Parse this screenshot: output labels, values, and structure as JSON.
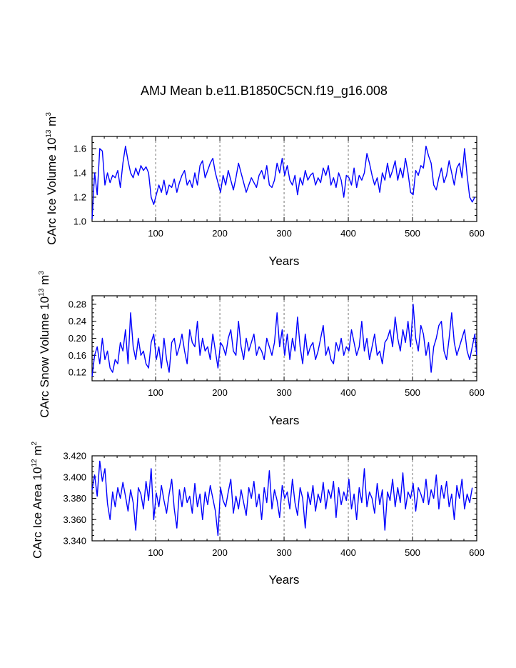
{
  "figure_title": "AMJ Mean b.e11.B1850C5CN.f19_g16.008",
  "chart_data": [
    {
      "type": "line",
      "ylabel_main": "CArc Ice Volume 10",
      "ylabel_exp": "13",
      "ylabel_unit": " m",
      "ylabel_unit_exp": "3",
      "xlabel": "Years",
      "xlim": [
        1,
        600
      ],
      "ylim": [
        1.0,
        1.7
      ],
      "xticks": [
        100,
        200,
        300,
        400,
        500,
        600
      ],
      "xtick_labels": [
        "100",
        "200",
        "300",
        "400",
        "500",
        "600"
      ],
      "yticks": [
        1.0,
        1.2,
        1.4,
        1.6
      ],
      "ytick_labels": [
        "1.0",
        "1.2",
        "1.4",
        "1.6"
      ],
      "grid_x": [
        100,
        200,
        300,
        400,
        500
      ],
      "series": [
        {
          "name": "CArc Ice Volume",
          "color": "#0000ff",
          "x_start": 1,
          "x_step": 4,
          "values": [
            1.02,
            1.4,
            1.22,
            1.6,
            1.58,
            1.3,
            1.4,
            1.32,
            1.38,
            1.36,
            1.42,
            1.28,
            1.48,
            1.62,
            1.5,
            1.4,
            1.36,
            1.44,
            1.38,
            1.46,
            1.42,
            1.45,
            1.4,
            1.2,
            1.14,
            1.22,
            1.3,
            1.24,
            1.34,
            1.22,
            1.3,
            1.28,
            1.35,
            1.24,
            1.32,
            1.38,
            1.42,
            1.3,
            1.34,
            1.28,
            1.4,
            1.3,
            1.46,
            1.5,
            1.36,
            1.42,
            1.48,
            1.52,
            1.4,
            1.32,
            1.24,
            1.38,
            1.3,
            1.42,
            1.34,
            1.26,
            1.36,
            1.48,
            1.4,
            1.32,
            1.24,
            1.3,
            1.36,
            1.32,
            1.28,
            1.38,
            1.42,
            1.35,
            1.46,
            1.3,
            1.28,
            1.34,
            1.48,
            1.4,
            1.52,
            1.38,
            1.46,
            1.34,
            1.3,
            1.38,
            1.22,
            1.36,
            1.3,
            1.42,
            1.34,
            1.38,
            1.4,
            1.3,
            1.36,
            1.32,
            1.44,
            1.38,
            1.46,
            1.3,
            1.36,
            1.28,
            1.4,
            1.34,
            1.2,
            1.38,
            1.36,
            1.3,
            1.44,
            1.28,
            1.38,
            1.34,
            1.4,
            1.56,
            1.48,
            1.38,
            1.3,
            1.36,
            1.24,
            1.4,
            1.34,
            1.48,
            1.36,
            1.42,
            1.5,
            1.34,
            1.44,
            1.36,
            1.52,
            1.4,
            1.24,
            1.22,
            1.42,
            1.38,
            1.46,
            1.44,
            1.62,
            1.54,
            1.48,
            1.3,
            1.26,
            1.36,
            1.44,
            1.32,
            1.38,
            1.5,
            1.4,
            1.3,
            1.44,
            1.48,
            1.36,
            1.6,
            1.38,
            1.2,
            1.16,
            1.2
          ]
        }
      ]
    },
    {
      "type": "line",
      "ylabel_main": "CArc Snow Volume 10",
      "ylabel_exp": "13",
      "ylabel_unit": " m",
      "ylabel_unit_exp": "3",
      "xlabel": "Years",
      "xlim": [
        1,
        600
      ],
      "ylim": [
        0.1,
        0.3
      ],
      "xticks": [
        100,
        200,
        300,
        400,
        500,
        600
      ],
      "xtick_labels": [
        "100",
        "200",
        "300",
        "400",
        "500",
        "600"
      ],
      "yticks": [
        0.12,
        0.16,
        0.2,
        0.24,
        0.28
      ],
      "ytick_labels": [
        "0.12",
        "0.16",
        "0.20",
        "0.24",
        "0.28"
      ],
      "grid_x": [
        100,
        200,
        300,
        400,
        500
      ],
      "series": [
        {
          "name": "CArc Snow Volume",
          "color": "#0000ff",
          "x_start": 1,
          "x_step": 4,
          "values": [
            0.11,
            0.16,
            0.18,
            0.14,
            0.2,
            0.15,
            0.17,
            0.13,
            0.12,
            0.15,
            0.14,
            0.19,
            0.17,
            0.22,
            0.14,
            0.26,
            0.18,
            0.15,
            0.2,
            0.16,
            0.17,
            0.14,
            0.13,
            0.19,
            0.21,
            0.15,
            0.18,
            0.13,
            0.2,
            0.15,
            0.12,
            0.19,
            0.2,
            0.16,
            0.18,
            0.21,
            0.17,
            0.14,
            0.22,
            0.19,
            0.18,
            0.24,
            0.16,
            0.2,
            0.17,
            0.18,
            0.15,
            0.21,
            0.17,
            0.13,
            0.19,
            0.18,
            0.16,
            0.2,
            0.22,
            0.17,
            0.16,
            0.24,
            0.18,
            0.15,
            0.2,
            0.17,
            0.19,
            0.21,
            0.16,
            0.18,
            0.17,
            0.15,
            0.2,
            0.18,
            0.16,
            0.19,
            0.26,
            0.18,
            0.22,
            0.16,
            0.21,
            0.15,
            0.2,
            0.17,
            0.25,
            0.18,
            0.14,
            0.21,
            0.16,
            0.18,
            0.19,
            0.15,
            0.17,
            0.2,
            0.23,
            0.16,
            0.18,
            0.15,
            0.14,
            0.19,
            0.17,
            0.2,
            0.16,
            0.18,
            0.17,
            0.22,
            0.19,
            0.16,
            0.18,
            0.24,
            0.17,
            0.2,
            0.15,
            0.18,
            0.21,
            0.16,
            0.17,
            0.14,
            0.19,
            0.2,
            0.22,
            0.18,
            0.25,
            0.2,
            0.17,
            0.22,
            0.19,
            0.24,
            0.18,
            0.28,
            0.2,
            0.17,
            0.23,
            0.21,
            0.16,
            0.19,
            0.12,
            0.18,
            0.2,
            0.23,
            0.24,
            0.17,
            0.15,
            0.2,
            0.26,
            0.19,
            0.16,
            0.18,
            0.2,
            0.22,
            0.17,
            0.15,
            0.18,
            0.21,
            0.16
          ]
        }
      ]
    },
    {
      "type": "line",
      "ylabel_main": "CArc Ice Area 10",
      "ylabel_exp": "12",
      "ylabel_unit": " m",
      "ylabel_unit_exp": "2",
      "xlabel": "Years",
      "xlim": [
        1,
        600
      ],
      "ylim": [
        3.34,
        3.42
      ],
      "xticks": [
        100,
        200,
        300,
        400,
        500,
        600
      ],
      "xtick_labels": [
        "100",
        "200",
        "300",
        "400",
        "500",
        "600"
      ],
      "yticks": [
        3.34,
        3.36,
        3.38,
        3.4,
        3.42
      ],
      "ytick_labels": [
        "3.340",
        "3.360",
        "3.380",
        "3.400",
        "3.420"
      ],
      "grid_x": [
        100,
        200,
        300,
        400,
        500
      ],
      "series": [
        {
          "name": "CArc Ice Area",
          "color": "#0000ff",
          "x_start": 1,
          "x_step": 4,
          "values": [
            3.388,
            3.402,
            3.382,
            3.415,
            3.396,
            3.408,
            3.375,
            3.36,
            3.386,
            3.372,
            3.39,
            3.38,
            3.395,
            3.382,
            3.368,
            3.388,
            3.376,
            3.35,
            3.39,
            3.384,
            3.37,
            3.396,
            3.378,
            3.408,
            3.36,
            3.385,
            3.372,
            3.392,
            3.378,
            3.366,
            3.384,
            3.398,
            3.37,
            3.352,
            3.388,
            3.372,
            3.39,
            3.376,
            3.382,
            3.366,
            3.394,
            3.372,
            3.384,
            3.36,
            3.386,
            3.374,
            3.392,
            3.38,
            3.368,
            3.345,
            3.39,
            3.378,
            3.372,
            3.386,
            3.398,
            3.366,
            3.382,
            3.37,
            3.388,
            3.376,
            3.364,
            3.39,
            3.38,
            3.396,
            3.372,
            3.384,
            3.36,
            3.39,
            3.376,
            3.406,
            3.37,
            3.388,
            3.378,
            3.362,
            3.392,
            3.38,
            3.386,
            3.37,
            3.398,
            3.376,
            3.364,
            3.39,
            3.38,
            3.352,
            3.386,
            3.374,
            3.392,
            3.368,
            3.384,
            3.376,
            3.395,
            3.37,
            3.388,
            3.38,
            3.396,
            3.362,
            3.39,
            3.374,
            3.386,
            3.378,
            3.398,
            3.37,
            3.384,
            3.36,
            3.39,
            3.376,
            3.408,
            3.372,
            3.386,
            3.38,
            3.366,
            3.394,
            3.374,
            3.388,
            3.35,
            3.386,
            3.378,
            3.398,
            3.372,
            3.39,
            3.376,
            3.404,
            3.37,
            3.386,
            3.38,
            3.394,
            3.368,
            3.39,
            3.384,
            3.376,
            3.398,
            3.374,
            3.388,
            3.38,
            3.402,
            3.37,
            3.392,
            3.38,
            3.396,
            3.372,
            3.384,
            3.36,
            3.392,
            3.38,
            3.398,
            3.37,
            3.384,
            3.376,
            3.39
          ]
        }
      ]
    }
  ]
}
